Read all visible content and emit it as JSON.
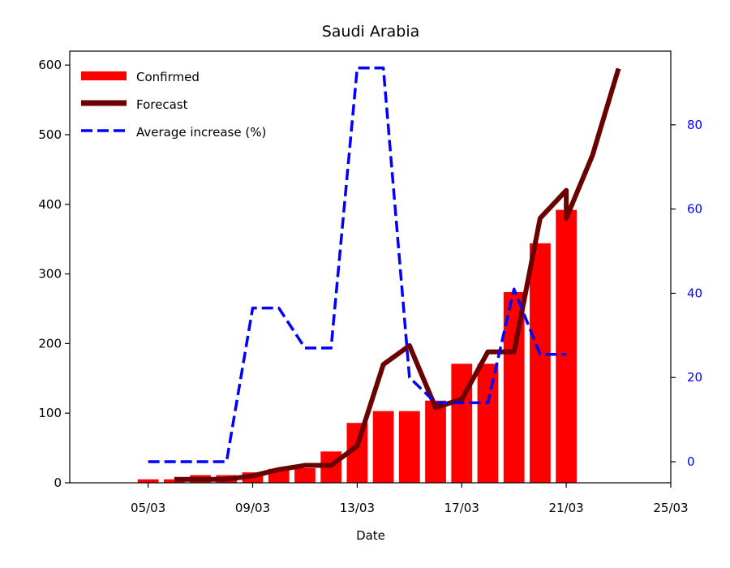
{
  "chart_data": {
    "type": "bar+line",
    "title": "Saudi Arabia",
    "xlabel": "Date",
    "ylabel": "",
    "y2label": "",
    "x_tick_labels": [
      "05/03",
      "09/03",
      "13/03",
      "17/03",
      "21/03",
      "25/03"
    ],
    "x_tick_days": [
      5,
      9,
      13,
      17,
      21,
      25
    ],
    "xlim_days": [
      2,
      25
    ],
    "y_ticks": [
      0,
      100,
      200,
      300,
      400,
      500,
      600
    ],
    "ylim": [
      0,
      620
    ],
    "y2_ticks": [
      0,
      20,
      40,
      60,
      80
    ],
    "y2lim": [
      -5,
      97.5
    ],
    "grid": false,
    "legend_position": "upper-left",
    "legend": {
      "confirmed": "Confirmed",
      "forecast": "Forecast",
      "average": "Average increase (%)"
    },
    "colors": {
      "confirmed": "#ff0000",
      "forecast": "#6b0000",
      "average": "#0000ff",
      "right_axis": "#0000ff"
    },
    "confirmed": {
      "days": [
        5,
        6,
        7,
        8,
        9,
        10,
        11,
        12,
        13,
        14,
        15,
        16,
        17,
        18,
        19,
        20,
        21
      ],
      "values": [
        5,
        5,
        11,
        11,
        15,
        20,
        21,
        45,
        86,
        103,
        103,
        118,
        171,
        171,
        274,
        344,
        392
      ]
    },
    "forecast": {
      "days": [
        6,
        7,
        8,
        9,
        10,
        11,
        12,
        13,
        14,
        15,
        16,
        17,
        18,
        19,
        20,
        21,
        21,
        22,
        23
      ],
      "values": [
        5,
        5,
        5,
        10,
        19,
        25,
        25,
        53,
        170,
        197,
        108,
        120,
        188,
        188,
        380,
        420,
        380,
        470,
        595
      ]
    },
    "average_increase": {
      "days": [
        5,
        6,
        7,
        8,
        9,
        10,
        11,
        12,
        13,
        14,
        15,
        16,
        17,
        18,
        19,
        20,
        21
      ],
      "values": [
        0,
        0,
        0,
        0,
        36.5,
        36.5,
        27,
        27,
        93.5,
        93.5,
        20,
        14,
        14,
        14,
        41,
        25.5,
        25.5
      ]
    }
  }
}
